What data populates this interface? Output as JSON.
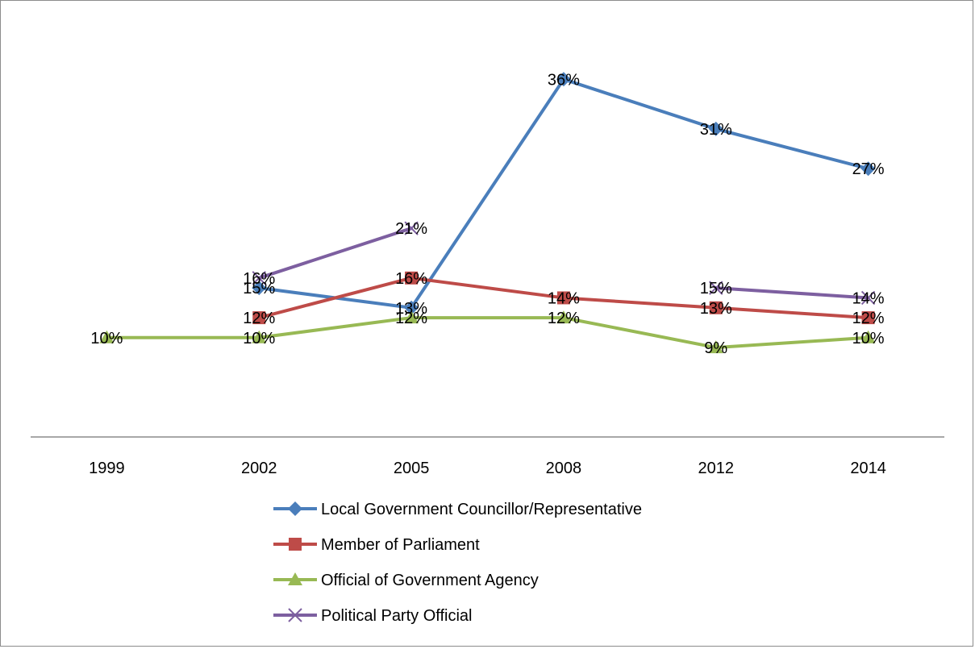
{
  "chart_data": {
    "type": "line",
    "title": "",
    "xlabel": "",
    "ylabel": "",
    "categories": [
      "1999",
      "2002",
      "2005",
      "2008",
      "2012",
      "2014"
    ],
    "ylim": [
      0,
      40
    ],
    "grid": false,
    "legend_position": "bottom",
    "series": [
      {
        "name": "Local Government Councillor/Representative",
        "color": "#4a7ebb",
        "marker": "diamond",
        "values": [
          null,
          15,
          13,
          36,
          31,
          27
        ],
        "labels": [
          null,
          "15%",
          "13%",
          "36%",
          "31%",
          "27%"
        ]
      },
      {
        "name": "Member of Parliament",
        "color": "#be4b48",
        "marker": "square",
        "values": [
          null,
          12,
          16,
          14,
          13,
          12
        ],
        "labels": [
          null,
          "12%",
          "16%",
          "14%",
          "13%",
          "12%"
        ]
      },
      {
        "name": "Official of Government Agency",
        "color": "#98b954",
        "marker": "triangle",
        "values": [
          10,
          10,
          12,
          12,
          9,
          10
        ],
        "labels": [
          "10%",
          "10%",
          "12%",
          "12%",
          "9%",
          "10%"
        ]
      },
      {
        "name": "Political Party Official",
        "color": "#7d5fa0",
        "marker": "x",
        "values": [
          null,
          16,
          21,
          null,
          15,
          14
        ],
        "labels": [
          null,
          "16%",
          "21%",
          null,
          "15%",
          "14%"
        ]
      }
    ]
  }
}
